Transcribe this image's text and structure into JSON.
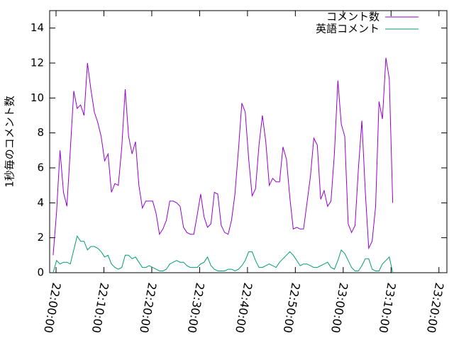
{
  "chart_data": {
    "type": "line",
    "ylabel": "1秒毎のコメント数",
    "legend": "top right",
    "grid": false,
    "xlim": [
      "21:58:40",
      "23:21:40"
    ],
    "xticks": [
      "22:00:00",
      "22:10:00",
      "22:20:00",
      "22:30:00",
      "22:40:00",
      "22:50:00",
      "23:00:00",
      "23:10:00",
      "23:20:00"
    ],
    "ylim": [
      0,
      15
    ],
    "yticks": [
      0,
      2,
      4,
      6,
      8,
      10,
      12,
      14
    ],
    "x": [
      "21:59:24",
      "22:00:07",
      "22:00:50",
      "22:01:33",
      "22:02:16",
      "22:02:59",
      "22:03:42",
      "22:04:25",
      "22:05:08",
      "22:05:51",
      "22:06:34",
      "22:07:17",
      "22:08:00",
      "22:08:43",
      "22:09:26",
      "22:10:09",
      "22:10:52",
      "22:11:35",
      "22:12:18",
      "22:13:01",
      "22:13:44",
      "22:14:27",
      "22:15:10",
      "22:15:53",
      "22:16:36",
      "22:17:19",
      "22:18:02",
      "22:18:45",
      "22:19:28",
      "22:20:11",
      "22:20:54",
      "22:21:37",
      "22:22:20",
      "22:23:03",
      "22:23:46",
      "22:24:29",
      "22:25:12",
      "22:25:55",
      "22:26:38",
      "22:27:21",
      "22:28:04",
      "22:28:47",
      "22:29:30",
      "22:30:13",
      "22:30:56",
      "22:31:39",
      "22:32:22",
      "22:33:05",
      "22:33:48",
      "22:34:31",
      "22:35:14",
      "22:35:57",
      "22:36:40",
      "22:37:23",
      "22:38:06",
      "22:38:49",
      "22:39:32",
      "22:40:15",
      "22:40:58",
      "22:41:41",
      "22:42:24",
      "22:43:07",
      "22:43:50",
      "22:44:33",
      "22:45:16",
      "22:45:59",
      "22:46:42",
      "22:47:25",
      "22:48:08",
      "22:48:51",
      "22:49:34",
      "22:50:17",
      "22:51:00",
      "22:51:43",
      "22:52:26",
      "22:53:09",
      "22:53:52",
      "22:54:35",
      "22:55:18",
      "22:56:01",
      "22:56:44",
      "22:57:27",
      "22:58:10",
      "22:58:53",
      "22:59:36",
      "23:00:19",
      "23:01:02",
      "23:01:45",
      "23:02:28",
      "23:03:11",
      "23:03:54",
      "23:04:37",
      "23:05:20",
      "23:06:03",
      "23:06:46",
      "23:07:29",
      "23:08:12",
      "23:08:55",
      "23:09:38",
      "23:10:21"
    ],
    "series": [
      {
        "name": "コメント数",
        "color": "#9400d3",
        "values": [
          1.0,
          3.5,
          7.0,
          4.6,
          3.8,
          7.0,
          10.4,
          9.4,
          9.6,
          9.0,
          12.0,
          10.5,
          9.2,
          8.6,
          7.8,
          6.4,
          6.8,
          4.6,
          5.1,
          5.0,
          7.2,
          10.5,
          7.8,
          6.8,
          7.5,
          5.0,
          3.7,
          4.1,
          4.1,
          4.1,
          3.4,
          2.2,
          2.5,
          3.0,
          4.1,
          4.1,
          4.0,
          3.8,
          2.6,
          2.3,
          2.2,
          2.2,
          3.3,
          4.5,
          3.2,
          2.6,
          2.8,
          4.6,
          4.5,
          2.7,
          2.3,
          2.2,
          3.0,
          4.5,
          7.0,
          9.7,
          9.2,
          6.5,
          4.4,
          4.8,
          7.3,
          9.0,
          7.5,
          5.0,
          5.4,
          5.2,
          5.2,
          7.2,
          6.5,
          4.3,
          2.5,
          2.6,
          2.5,
          2.5,
          4.0,
          5.5,
          7.7,
          7.3,
          4.2,
          4.7,
          3.8,
          4.1,
          6.8,
          11.0,
          8.5,
          7.8,
          2.8,
          2.3,
          2.7,
          6.0,
          8.7,
          4.6,
          1.4,
          1.8,
          3.8,
          9.8,
          8.8,
          12.3,
          11.1,
          4.0
        ]
      },
      {
        "name": "英語コメント",
        "color": "#009e73",
        "values": [
          0.0,
          0.7,
          0.5,
          0.6,
          0.6,
          0.5,
          1.3,
          2.1,
          1.8,
          1.8,
          1.3,
          1.5,
          1.5,
          1.4,
          1.2,
          0.9,
          1.0,
          0.5,
          0.3,
          0.2,
          0.3,
          1.0,
          1.0,
          0.8,
          0.9,
          0.6,
          0.3,
          0.3,
          0.4,
          0.3,
          0.2,
          0.1,
          0.1,
          0.2,
          0.5,
          0.6,
          0.7,
          0.6,
          0.6,
          0.4,
          0.3,
          0.3,
          0.3,
          0.5,
          0.6,
          0.9,
          0.4,
          0.2,
          0.1,
          0.1,
          0.1,
          0.2,
          0.2,
          0.1,
          0.2,
          0.4,
          0.7,
          1.2,
          1.2,
          0.7,
          0.3,
          0.3,
          0.4,
          0.5,
          0.4,
          0.3,
          0.6,
          0.8,
          1.0,
          1.2,
          1.0,
          0.7,
          0.4,
          0.5,
          0.5,
          0.4,
          0.3,
          0.3,
          0.4,
          0.5,
          0.6,
          0.3,
          0.2,
          0.7,
          1.3,
          1.1,
          0.7,
          0.3,
          0.1,
          0.1,
          0.4,
          0.8,
          0.8,
          0.2,
          0.1,
          0.1,
          0.5,
          0.7,
          0.9,
          0.0
        ]
      }
    ]
  }
}
